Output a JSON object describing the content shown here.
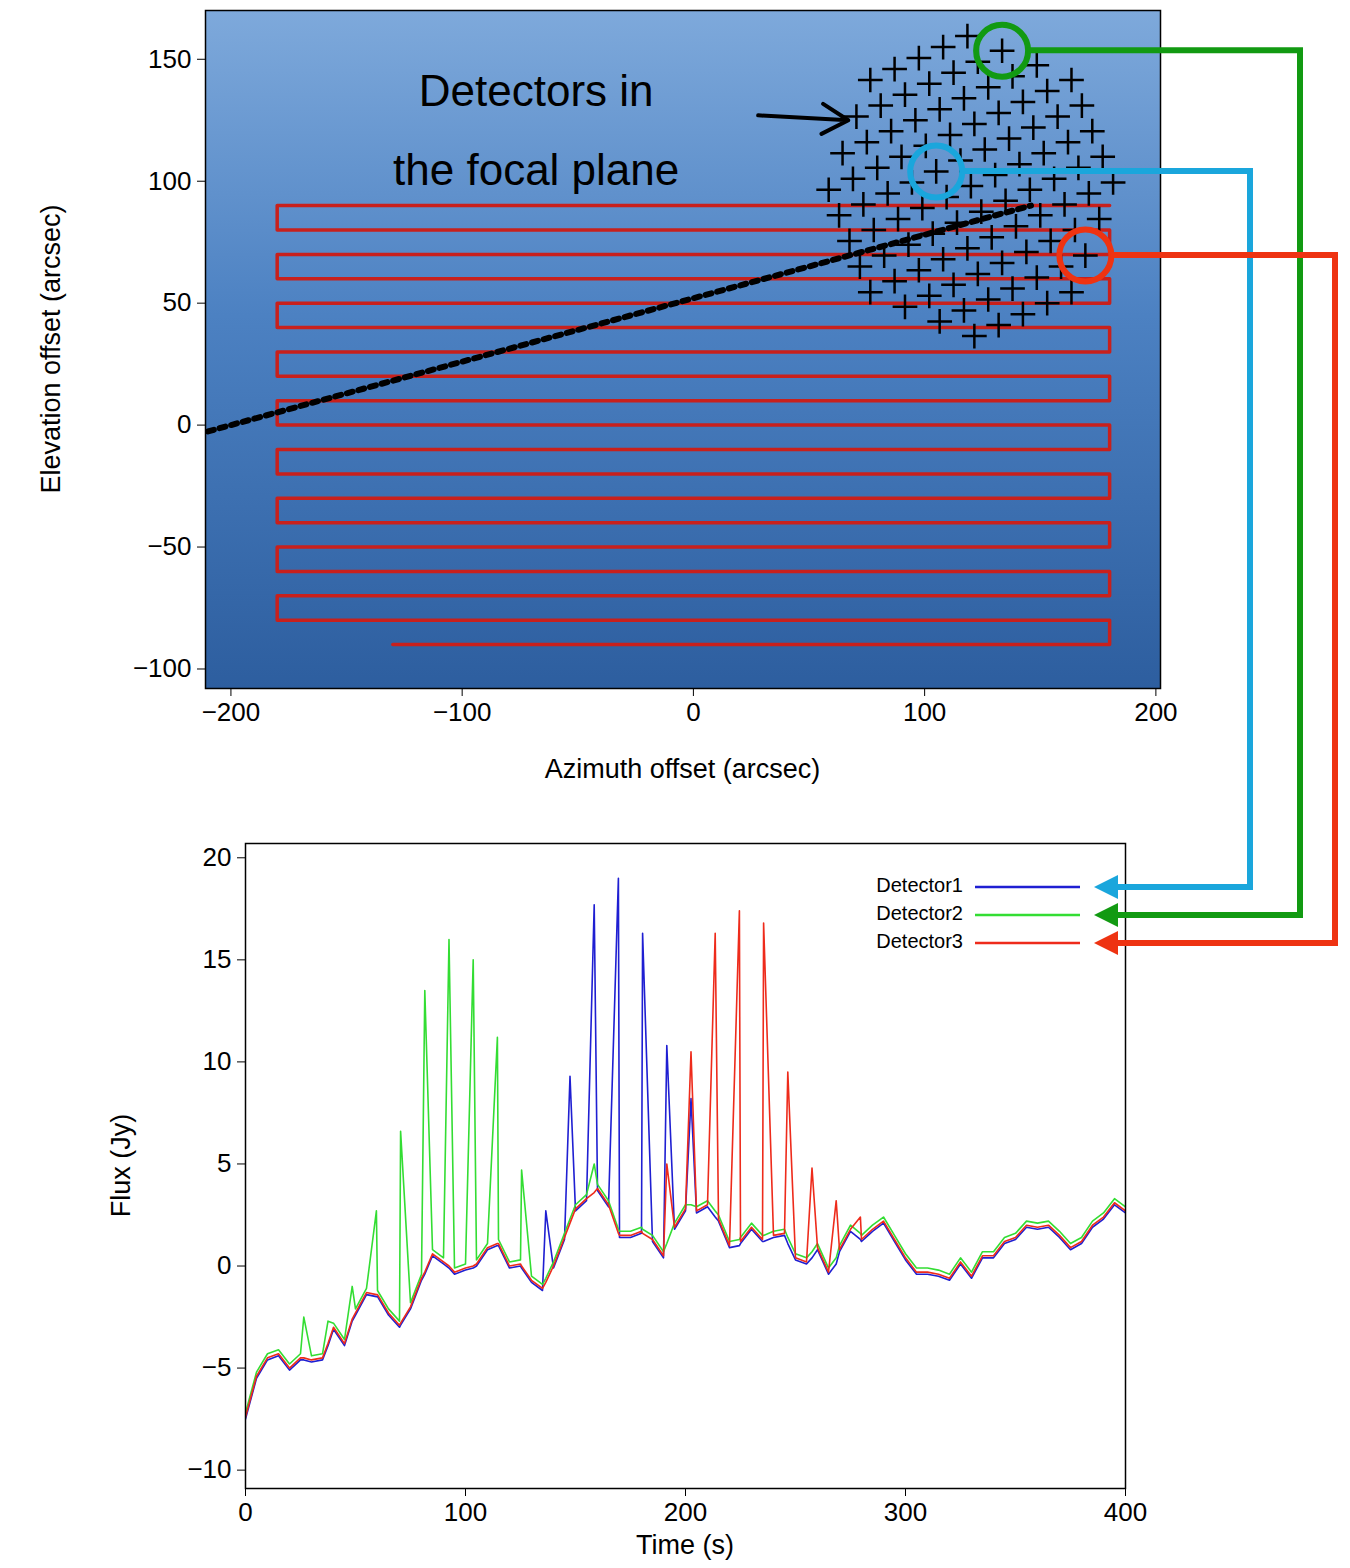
{
  "chart_data": [
    {
      "type": "scatter",
      "xlabel": "Azimuth offset (arcsec)",
      "ylabel": "Elevation offset (arcsec)",
      "xlim": [
        -211,
        202
      ],
      "ylim": [
        -108,
        170
      ],
      "xticks": [
        -200,
        -100,
        0,
        100,
        200
      ],
      "yticks": [
        -100,
        -50,
        0,
        50,
        100,
        150
      ],
      "grid": false,
      "scan_path": {
        "color": "#c8201c",
        "x": [
          -130,
          180,
          180,
          -180,
          -180,
          180,
          180,
          -180,
          -180,
          180,
          180,
          -180,
          -180,
          180,
          180,
          -180,
          -180,
          180,
          180,
          -180,
          -180,
          180,
          180,
          -180,
          -180,
          180,
          180,
          -180,
          -180,
          180,
          180,
          -180,
          -180,
          180,
          180,
          -180,
          -180,
          180
        ],
        "y": [
          -90,
          -90,
          -80,
          -80,
          -70,
          -70,
          -60,
          -60,
          -50,
          -50,
          -40,
          -40,
          -30,
          -30,
          -20,
          -20,
          -10,
          -10,
          0,
          0,
          10,
          10,
          20,
          20,
          30,
          30,
          40,
          40,
          50,
          50,
          60,
          60,
          70,
          70,
          80,
          80,
          90,
          90
        ]
      },
      "dotted_line": {
        "color": "#000000",
        "line_style": "dotted",
        "x": [
          -300,
          146
        ],
        "y": [
          -26,
          90
        ]
      },
      "detectors": {
        "marker": "plus",
        "color": "#000000",
        "x": [
          76.5,
          72,
          67.5,
          63,
          58.5,
          91.5,
          87,
          82.5,
          78,
          73.5,
          69,
          64.5,
          106.5,
          102,
          97.5,
          93,
          88.5,
          84,
          79.5,
          75,
          70.5,
          121.5,
          117,
          112.5,
          108,
          103.5,
          99,
          94.5,
          90,
          85.5,
          81,
          76.5,
          132,
          127.5,
          123,
          118.5,
          114,
          109.5,
          105,
          100.5,
          96,
          91.5,
          87,
          142.5,
          138,
          133.5,
          129,
          124.5,
          120,
          115.5,
          111,
          106.5,
          102,
          97.5,
          153,
          148.5,
          144,
          139.5,
          135,
          130.5,
          126,
          121.5,
          117,
          112.5,
          108,
          163.5,
          159,
          154.5,
          150,
          145.5,
          141,
          136.5,
          132,
          127.5,
          123,
          118.5,
          169.5,
          165,
          160.5,
          156,
          151.5,
          147,
          142.5,
          138,
          133.5,
          175.5,
          171,
          166.5,
          162,
          157.5,
          153,
          148.5,
          181.5,
          177,
          172.5,
          168,
          163.5
        ],
        "y": [
          54.5,
          65,
          75.5,
          86,
          96.5,
          48.5,
          59,
          69.5,
          80,
          90.5,
          101,
          111.5,
          42.5,
          53,
          63.5,
          74,
          84.5,
          95,
          105.5,
          116,
          126.5,
          36.5,
          47,
          57.5,
          68,
          78.5,
          89,
          99.5,
          110,
          120.5,
          131,
          141.5,
          41,
          51.5,
          62,
          72.5,
          83,
          93.5,
          104,
          114.5,
          125,
          135.5,
          146,
          45.5,
          56,
          66.5,
          77,
          87.5,
          98,
          108.5,
          119,
          129.5,
          140,
          150.5,
          50,
          60.5,
          71,
          81.5,
          92,
          102.5,
          113,
          123.5,
          134,
          144.5,
          155,
          54.5,
          65,
          75.5,
          86,
          96.5,
          107,
          117.5,
          128,
          138.5,
          149,
          159.5,
          69.5,
          80,
          90.5,
          101,
          111.5,
          122,
          132.5,
          143,
          153.5,
          84.5,
          95,
          105.5,
          116,
          126.5,
          137,
          147.5,
          99.5,
          110,
          120.5,
          131,
          141.5
        ]
      },
      "highlighted": [
        {
          "detector": "Detector2",
          "color": "#129a12",
          "x": 133.5,
          "y": 153.5
        },
        {
          "detector": "Detector1",
          "color": "#1aa6dc",
          "x": 105,
          "y": 104
        },
        {
          "detector": "Detector3",
          "color": "#ee3312",
          "x": 169.5,
          "y": 69.5
        }
      ],
      "annotation": {
        "text": "Detectors in\nthe focal plane",
        "x": -68,
        "y": 125,
        "arrow_from": [
          28,
          127
        ],
        "arrow_to": [
          67,
          125
        ]
      }
    },
    {
      "type": "line",
      "xlabel": "Time (s)",
      "ylabel": "Flux (Jy)",
      "xlim": [
        0,
        400
      ],
      "ylim": [
        -10.9,
        20.7
      ],
      "xticks": [
        0,
        100,
        200,
        300,
        400
      ],
      "yticks": [
        -10,
        -5,
        0,
        5,
        10,
        15,
        20
      ],
      "grid": false,
      "legend": "top-right",
      "x": [
        0,
        5,
        10,
        15,
        20,
        25,
        26.5,
        30,
        35,
        37.5,
        40,
        45,
        48.5,
        50,
        55,
        59.5,
        60,
        65,
        70,
        70.5,
        75,
        80,
        81.5,
        85,
        90,
        92.5,
        95,
        100,
        103.5,
        105,
        110,
        114.5,
        115,
        120,
        125,
        125.5,
        130,
        135,
        136.5,
        140,
        145,
        147.5,
        150,
        155,
        158.5,
        160,
        165,
        169.5,
        170,
        175,
        180,
        180.5,
        185,
        190,
        191.5,
        195,
        200,
        202.5,
        205,
        210,
        213.5,
        215,
        220,
        224.5,
        225,
        230,
        235,
        235.5,
        240,
        245,
        246.5,
        250,
        255,
        257.5,
        260,
        265,
        268.5,
        270,
        275,
        279.5,
        280,
        285,
        290,
        295,
        300,
        305,
        310,
        315,
        320,
        325,
        330,
        335,
        340,
        345,
        350,
        355,
        360,
        365,
        370,
        375,
        380,
        385,
        390,
        395,
        400
      ],
      "series": [
        {
          "name": "Detector1",
          "color": "#1f1fd2",
          "values": [
            -7.5,
            -5.5,
            -4.6,
            -4.4,
            -5.1,
            -4.6,
            -4.6,
            -4.7,
            -4.6,
            -3.9,
            -3.1,
            -3.9,
            -2.7,
            -2.4,
            -1.4,
            -1.5,
            -1.5,
            -2.4,
            -3.0,
            -2.9,
            -2.1,
            -0.7,
            -0.4,
            0.5,
            0.1,
            -0.1,
            -0.4,
            -0.2,
            -0.1,
            0.0,
            0.8,
            1.0,
            1.0,
            -0.1,
            0.0,
            -0.1,
            -0.8,
            -1.2,
            2.7,
            -0.1,
            1.3,
            9.3,
            2.7,
            3.2,
            17.7,
            3.7,
            2.9,
            19.0,
            1.4,
            1.4,
            1.6,
            16.3,
            1.2,
            0.4,
            10.8,
            1.8,
            2.7,
            8.2,
            2.6,
            2.9,
            2.4,
            2.2,
            0.9,
            1.0,
            1.1,
            1.8,
            1.2,
            1.2,
            1.4,
            1.5,
            1.1,
            0.3,
            0.1,
            0.4,
            0.8,
            -0.4,
            0.1,
            0.7,
            1.7,
            1.3,
            1.2,
            1.7,
            2.1,
            1.2,
            0.3,
            -0.4,
            -0.4,
            -0.5,
            -0.7,
            0.1,
            -0.6,
            0.4,
            0.4,
            1.1,
            1.3,
            1.9,
            1.8,
            1.9,
            1.4,
            0.8,
            1.1,
            1.9,
            2.3,
            3.0,
            2.6
          ]
        },
        {
          "name": "Detector2",
          "color": "#33dd33",
          "values": [
            -7.2,
            -5.2,
            -4.3,
            -4.1,
            -4.8,
            -4.3,
            -2.5,
            -4.4,
            -4.3,
            -2.7,
            -2.8,
            -3.6,
            -1.0,
            -2.1,
            -1.1,
            2.7,
            -1.2,
            -2.1,
            -2.7,
            6.6,
            -1.8,
            -0.4,
            13.5,
            0.8,
            0.4,
            16.0,
            -0.1,
            0.1,
            15.0,
            0.3,
            1.1,
            11.2,
            1.3,
            0.2,
            0.3,
            4.7,
            -0.5,
            -0.9,
            -0.6,
            0.2,
            1.6,
            2.3,
            3.0,
            3.5,
            5.0,
            4.0,
            3.2,
            1.8,
            1.7,
            1.7,
            1.9,
            1.8,
            1.5,
            0.7,
            1.1,
            2.1,
            3.0,
            3.0,
            2.9,
            3.2,
            2.7,
            2.5,
            1.2,
            1.3,
            1.4,
            2.1,
            1.5,
            1.5,
            1.7,
            1.8,
            1.4,
            0.6,
            0.4,
            0.7,
            1.1,
            -0.1,
            0.4,
            1.0,
            2.0,
            1.6,
            1.5,
            2.0,
            2.4,
            1.5,
            0.6,
            -0.1,
            -0.1,
            -0.2,
            -0.4,
            0.4,
            -0.3,
            0.7,
            0.7,
            1.4,
            1.6,
            2.2,
            2.1,
            2.2,
            1.7,
            1.1,
            1.4,
            2.2,
            2.6,
            3.3,
            2.9
          ]
        },
        {
          "name": "Detector3",
          "color": "#ee2b1b",
          "values": [
            -7.4,
            -5.4,
            -4.5,
            -4.3,
            -5.0,
            -4.5,
            -4.5,
            -4.6,
            -4.5,
            -3.8,
            -3.0,
            -3.8,
            -2.6,
            -2.3,
            -1.3,
            -1.4,
            -1.4,
            -2.3,
            -2.9,
            -2.8,
            -2.0,
            -0.6,
            -0.3,
            0.6,
            0.2,
            0.0,
            -0.3,
            -0.1,
            0.0,
            0.1,
            0.9,
            1.1,
            1.1,
            0.0,
            0.1,
            0.0,
            -0.7,
            -1.1,
            -0.8,
            0.0,
            1.4,
            2.1,
            2.8,
            3.3,
            3.6,
            3.8,
            3.0,
            1.6,
            1.5,
            1.5,
            1.7,
            1.6,
            1.3,
            0.5,
            5.0,
            1.9,
            2.8,
            10.5,
            2.7,
            3.0,
            16.3,
            2.3,
            1.0,
            17.4,
            1.2,
            1.9,
            1.3,
            16.8,
            1.5,
            1.6,
            9.5,
            0.4,
            0.2,
            4.8,
            0.9,
            -0.3,
            3.2,
            0.8,
            1.8,
            2.4,
            1.3,
            1.8,
            2.2,
            1.3,
            0.4,
            -0.3,
            -0.3,
            -0.4,
            -0.6,
            0.2,
            -0.5,
            0.5,
            0.5,
            1.2,
            1.4,
            2.0,
            1.9,
            2.0,
            1.5,
            0.9,
            1.2,
            2.0,
            2.4,
            3.1,
            2.7
          ]
        }
      ]
    }
  ]
}
